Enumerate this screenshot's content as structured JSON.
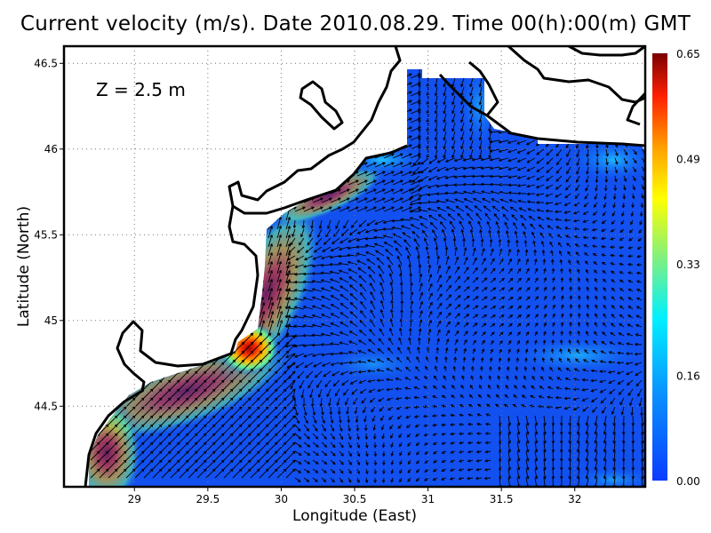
{
  "title": "Current velocity (m/s). Date 2010.08.29. Time 00(h):00(m) GMT",
  "depth_label": "Z = 2.5 m",
  "x_axis": {
    "label": "Longitude (East)",
    "ticks": [
      "29",
      "29.5",
      "30",
      "30.5",
      "31",
      "31.5",
      "32"
    ],
    "range": [
      28.52,
      32.48
    ]
  },
  "y_axis": {
    "label": "Latitude (North)",
    "ticks": [
      "46.5",
      "46",
      "45.5",
      "45",
      "44.5"
    ],
    "range": [
      44.03,
      46.6
    ]
  },
  "colorbar": {
    "ticks": [
      "0.65",
      "0.49",
      "0.33",
      "0.16",
      "0.00"
    ],
    "range": [
      0.0,
      0.65
    ],
    "colors": [
      "#0a3cff",
      "#0a78ff",
      "#00e8ff",
      "#80f080",
      "#ffff00",
      "#ffa000",
      "#ff2000",
      "#7a0000"
    ]
  },
  "grid": "dotted",
  "colors": {
    "water_base": "#1250f0",
    "land": "#ffffff",
    "coastline": "#000000",
    "arrow": "#000000"
  }
}
